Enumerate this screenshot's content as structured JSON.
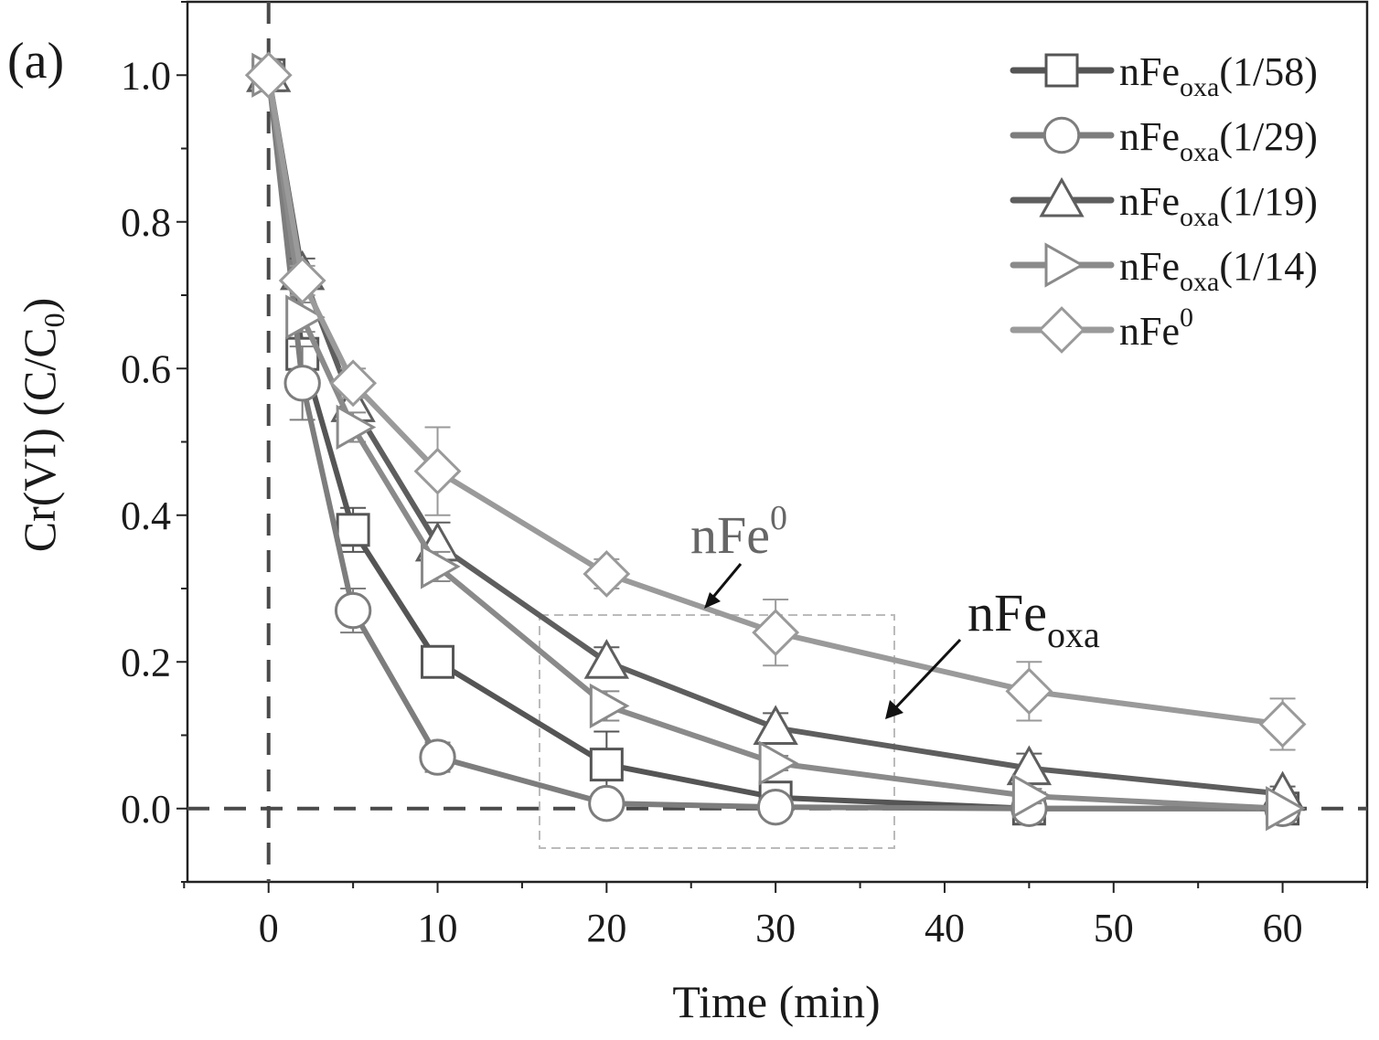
{
  "chart_data": {
    "type": "line",
    "panel_label": "(a)",
    "xlabel": "Time (min)",
    "ylabel": "Cr(VI) (C/C",
    "ylabel_sub": "0",
    "ylabel_end": ")",
    "xlim": [
      -4.8,
      65
    ],
    "ylim": [
      -0.1,
      1.1
    ],
    "xticks": [
      0,
      10,
      20,
      30,
      40,
      50,
      60
    ],
    "xtick_labels": [
      "0",
      "10",
      "20",
      "30",
      "40",
      "50",
      "60"
    ],
    "yticks": [
      0.0,
      0.2,
      0.4,
      0.6,
      0.8,
      1.0
    ],
    "ytick_labels": [
      "0.0",
      "0.2",
      "0.4",
      "0.6",
      "0.8",
      "1.0"
    ],
    "grid": false,
    "legend_position": "top-right",
    "x": [
      0,
      2,
      5,
      10,
      20,
      30,
      45,
      60
    ],
    "series": [
      {
        "name": "nFe",
        "sub": "oxa",
        "suffix": "(1/58)",
        "marker": "square",
        "color": "#555555",
        "values": [
          1.0,
          0.62,
          0.38,
          0.2,
          0.06,
          0.015,
          0.0,
          0.0
        ],
        "errors": [
          0.0,
          0.02,
          0.03,
          0.02,
          0.045,
          0.01,
          0.0,
          0.0
        ]
      },
      {
        "name": "nFe",
        "sub": "oxa",
        "suffix": "(1/29)",
        "marker": "circle",
        "color": "#7d7d7d",
        "values": [
          1.0,
          0.58,
          0.27,
          0.07,
          0.007,
          0.002,
          0.0,
          0.0
        ],
        "errors": [
          0.0,
          0.05,
          0.03,
          0.02,
          0.01,
          0.0,
          0.0,
          0.0
        ]
      },
      {
        "name": "nFe",
        "sub": "oxa",
        "suffix": "(1/19)",
        "marker": "triangle-up",
        "color": "#5e5e5e",
        "values": [
          1.0,
          0.73,
          0.55,
          0.36,
          0.2,
          0.11,
          0.055,
          0.02
        ],
        "errors": [
          0.0,
          0.02,
          0.03,
          0.03,
          0.02,
          0.02,
          0.02,
          0.01
        ]
      },
      {
        "name": "nFe",
        "sub": "oxa",
        "suffix": "(1/14)",
        "marker": "triangle-right",
        "color": "#8a8a8a",
        "values": [
          1.0,
          0.67,
          0.52,
          0.33,
          0.14,
          0.062,
          0.017,
          0.0
        ],
        "errors": [
          0.0,
          0.02,
          0.02,
          0.02,
          0.02,
          0.01,
          0.01,
          0.0
        ]
      },
      {
        "name": "nFe",
        "sup": "0",
        "suffix": "",
        "marker": "diamond",
        "color": "#9a9a9a",
        "values": [
          1.0,
          0.72,
          0.58,
          0.46,
          0.32,
          0.24,
          0.16,
          0.115
        ],
        "errors": [
          0.0,
          0.02,
          0.02,
          0.06,
          0.02,
          0.045,
          0.04,
          0.035
        ]
      }
    ],
    "annotations": [
      {
        "text": "nFe",
        "sup": "0"
      },
      {
        "text": "nFe",
        "sub": "oxa"
      }
    ]
  }
}
